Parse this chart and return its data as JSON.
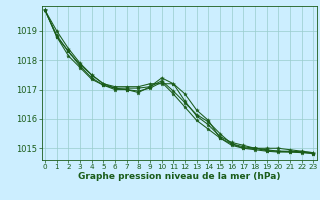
{
  "xlabel": "Graphe pression niveau de la mer (hPa)",
  "background_color": "#cceeff",
  "grid_color": "#99cccc",
  "line_color": "#1a5c1a",
  "marker_color": "#1a5c1a",
  "hours": [
    0,
    1,
    2,
    3,
    4,
    5,
    6,
    7,
    8,
    9,
    10,
    11,
    12,
    13,
    14,
    15,
    16,
    17,
    18,
    19,
    20,
    21,
    22,
    23
  ],
  "series": [
    [
      1019.7,
      1019.0,
      1018.4,
      1017.9,
      1017.5,
      1017.2,
      1017.1,
      1017.1,
      1017.1,
      1017.2,
      1017.2,
      1017.2,
      1016.6,
      1016.1,
      1015.8,
      1015.4,
      1015.2,
      1015.1,
      1015.0,
      1015.0,
      1015.0,
      1014.95,
      1014.9,
      1014.85
    ],
    [
      1019.7,
      1018.8,
      1018.3,
      1017.85,
      1017.5,
      1017.2,
      1017.05,
      1017.05,
      1017.05,
      1017.1,
      1017.4,
      1017.2,
      1016.85,
      1016.3,
      1015.95,
      1015.35,
      1015.1,
      1015.0,
      1015.0,
      1014.95,
      1014.9,
      1014.9,
      1014.88,
      1014.85
    ],
    [
      1019.7,
      1018.8,
      1018.15,
      1017.75,
      1017.35,
      1017.15,
      1017.05,
      1017.0,
      1016.95,
      1017.05,
      1017.25,
      1016.85,
      1016.4,
      1015.95,
      1015.65,
      1015.35,
      1015.15,
      1015.0,
      1014.95,
      1014.9,
      1014.87,
      1014.87,
      1014.85,
      1014.82
    ],
    [
      1019.7,
      1018.85,
      1018.3,
      1017.8,
      1017.4,
      1017.15,
      1017.0,
      1017.0,
      1016.9,
      1017.1,
      1017.3,
      1016.95,
      1016.55,
      1016.15,
      1015.9,
      1015.5,
      1015.15,
      1015.05,
      1015.0,
      1014.92,
      1014.9,
      1014.88,
      1014.87,
      1014.82
    ]
  ],
  "ylim": [
    1014.6,
    1019.85
  ],
  "yticks": [
    1015,
    1016,
    1017,
    1018,
    1019
  ],
  "xlim": [
    -0.3,
    23.3
  ],
  "fontsize_xlabel": 6.5,
  "fontsize_ytick": 6.0,
  "fontsize_xtick": 5.2,
  "tick_color": "#1a5c1a",
  "label_color": "#1a5c1a",
  "linewidth": 0.75,
  "markersize": 2.8
}
